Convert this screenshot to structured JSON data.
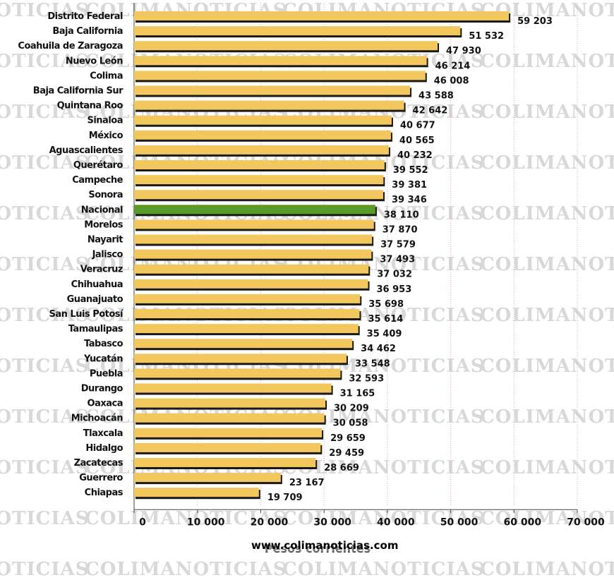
{
  "watermark": "COLIMANOTICIAS",
  "credit": "www.colimanoticias.com",
  "chart_data": {
    "type": "bar",
    "orientation": "horizontal",
    "title": "",
    "xlabel": "Pesos corrientes",
    "ylabel": "",
    "xlim": [
      0,
      70000
    ],
    "xticks": [
      0,
      10000,
      20000,
      30000,
      40000,
      50000,
      60000,
      70000
    ],
    "xtick_labels": [
      "0",
      "10 000",
      "20 000",
      "30 000",
      "40 000",
      "50 000",
      "60 000",
      "70 000"
    ],
    "grid": "vertical",
    "colors": {
      "bar": "#f2c75e",
      "highlight": "#5a9a2a",
      "shadow": "#1a1a1a",
      "grid": "#e2a0a0"
    },
    "categories": [
      "Distrito Federal",
      "Baja California",
      "Coahuila de Zaragoza",
      "Nuevo León",
      "Colima",
      "Baja California Sur",
      "Quintana Roo",
      "Sinaloa",
      "México",
      "Aguascalientes",
      "Querétaro",
      "Campeche",
      "Sonora",
      "Nacional",
      "Morelos",
      "Nayarit",
      "Jalisco",
      "Veracruz",
      "Chihuahua",
      "Guanajuato",
      "San Luis Potosí",
      "Tamaulipas",
      "Tabasco",
      "Yucatán",
      "Puebla",
      "Durango",
      "Oaxaca",
      "Michoacán",
      "Tlaxcala",
      "Hidalgo",
      "Zacatecas",
      "Guerrero",
      "Chiapas"
    ],
    "values": [
      59203,
      51532,
      47930,
      46214,
      46008,
      43588,
      42642,
      40677,
      40565,
      40232,
      39552,
      39381,
      39346,
      38110,
      37870,
      37579,
      37493,
      37032,
      36953,
      35698,
      35614,
      35409,
      34462,
      33548,
      32593,
      31165,
      30209,
      30058,
      29659,
      29459,
      28669,
      23167,
      19709
    ],
    "value_labels": [
      "59 203",
      "51 532",
      "47 930",
      "46 214",
      "46 008",
      "43 588",
      "42 642",
      "40 677",
      "40 565",
      "40 232",
      "39 552",
      "39 381",
      "39 346",
      "38 110",
      "37 870",
      "37 579",
      "37 493",
      "37 032",
      "36 953",
      "35 698",
      "35 614",
      "35 409",
      "34 462",
      "33 548",
      "32 593",
      "31 165",
      "30 209",
      "30 058",
      "29 659",
      "29 459",
      "28 669",
      "23 167",
      "19 709"
    ],
    "highlight": "Nacional"
  }
}
